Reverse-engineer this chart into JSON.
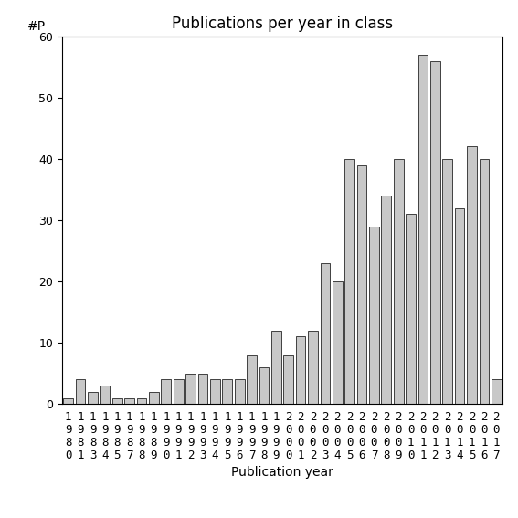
{
  "title": "Publications per year in class",
  "xlabel": "Publication year",
  "ylabel": "#P",
  "years": [
    "1980",
    "1981",
    "1983",
    "1984",
    "1985",
    "1987",
    "1988",
    "1989",
    "1990",
    "1991",
    "1992",
    "1993",
    "1994",
    "1995",
    "1996",
    "1997",
    "1998",
    "1999",
    "2000",
    "2001",
    "2002",
    "2003",
    "2004",
    "2005",
    "2006",
    "2007",
    "2008",
    "2009",
    "2010",
    "2011",
    "2012",
    "2013",
    "2014",
    "2015",
    "2016",
    "2017"
  ],
  "values": [
    1,
    4,
    2,
    3,
    1,
    1,
    1,
    2,
    4,
    4,
    5,
    5,
    4,
    4,
    4,
    8,
    6,
    12,
    8,
    11,
    12,
    23,
    20,
    40,
    39,
    29,
    34,
    40,
    31,
    57,
    56,
    40,
    32,
    42,
    40,
    4
  ],
  "bar_color": "#c8c8c8",
  "bar_edge_color": "#000000",
  "ylim": [
    0,
    60
  ],
  "yticks": [
    0,
    10,
    20,
    30,
    40,
    50,
    60
  ],
  "background_color": "#ffffff",
  "title_fontsize": 12,
  "axis_label_fontsize": 10,
  "tick_fontsize": 9
}
